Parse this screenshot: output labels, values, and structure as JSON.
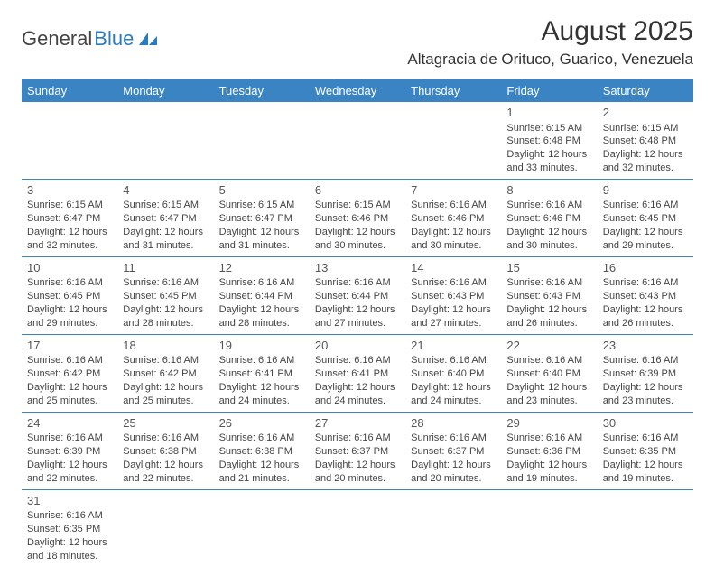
{
  "logo": {
    "part1": "General",
    "part2": "Blue"
  },
  "title": "August 2025",
  "location": "Altagracia de Orituco, Guarico, Venezuela",
  "colors": {
    "header_bg": "#3a84c4",
    "header_fg": "#ffffff",
    "border": "#3a84c4",
    "logo_blue": "#2a7bbf",
    "text": "#444444"
  },
  "day_headers": [
    "Sunday",
    "Monday",
    "Tuesday",
    "Wednesday",
    "Thursday",
    "Friday",
    "Saturday"
  ],
  "weeks": [
    [
      null,
      null,
      null,
      null,
      null,
      {
        "n": "1",
        "sr": "Sunrise: 6:15 AM",
        "ss": "Sunset: 6:48 PM",
        "d1": "Daylight: 12 hours",
        "d2": "and 33 minutes."
      },
      {
        "n": "2",
        "sr": "Sunrise: 6:15 AM",
        "ss": "Sunset: 6:48 PM",
        "d1": "Daylight: 12 hours",
        "d2": "and 32 minutes."
      }
    ],
    [
      {
        "n": "3",
        "sr": "Sunrise: 6:15 AM",
        "ss": "Sunset: 6:47 PM",
        "d1": "Daylight: 12 hours",
        "d2": "and 32 minutes."
      },
      {
        "n": "4",
        "sr": "Sunrise: 6:15 AM",
        "ss": "Sunset: 6:47 PM",
        "d1": "Daylight: 12 hours",
        "d2": "and 31 minutes."
      },
      {
        "n": "5",
        "sr": "Sunrise: 6:15 AM",
        "ss": "Sunset: 6:47 PM",
        "d1": "Daylight: 12 hours",
        "d2": "and 31 minutes."
      },
      {
        "n": "6",
        "sr": "Sunrise: 6:15 AM",
        "ss": "Sunset: 6:46 PM",
        "d1": "Daylight: 12 hours",
        "d2": "and 30 minutes."
      },
      {
        "n": "7",
        "sr": "Sunrise: 6:16 AM",
        "ss": "Sunset: 6:46 PM",
        "d1": "Daylight: 12 hours",
        "d2": "and 30 minutes."
      },
      {
        "n": "8",
        "sr": "Sunrise: 6:16 AM",
        "ss": "Sunset: 6:46 PM",
        "d1": "Daylight: 12 hours",
        "d2": "and 30 minutes."
      },
      {
        "n": "9",
        "sr": "Sunrise: 6:16 AM",
        "ss": "Sunset: 6:45 PM",
        "d1": "Daylight: 12 hours",
        "d2": "and 29 minutes."
      }
    ],
    [
      {
        "n": "10",
        "sr": "Sunrise: 6:16 AM",
        "ss": "Sunset: 6:45 PM",
        "d1": "Daylight: 12 hours",
        "d2": "and 29 minutes."
      },
      {
        "n": "11",
        "sr": "Sunrise: 6:16 AM",
        "ss": "Sunset: 6:45 PM",
        "d1": "Daylight: 12 hours",
        "d2": "and 28 minutes."
      },
      {
        "n": "12",
        "sr": "Sunrise: 6:16 AM",
        "ss": "Sunset: 6:44 PM",
        "d1": "Daylight: 12 hours",
        "d2": "and 28 minutes."
      },
      {
        "n": "13",
        "sr": "Sunrise: 6:16 AM",
        "ss": "Sunset: 6:44 PM",
        "d1": "Daylight: 12 hours",
        "d2": "and 27 minutes."
      },
      {
        "n": "14",
        "sr": "Sunrise: 6:16 AM",
        "ss": "Sunset: 6:43 PM",
        "d1": "Daylight: 12 hours",
        "d2": "and 27 minutes."
      },
      {
        "n": "15",
        "sr": "Sunrise: 6:16 AM",
        "ss": "Sunset: 6:43 PM",
        "d1": "Daylight: 12 hours",
        "d2": "and 26 minutes."
      },
      {
        "n": "16",
        "sr": "Sunrise: 6:16 AM",
        "ss": "Sunset: 6:43 PM",
        "d1": "Daylight: 12 hours",
        "d2": "and 26 minutes."
      }
    ],
    [
      {
        "n": "17",
        "sr": "Sunrise: 6:16 AM",
        "ss": "Sunset: 6:42 PM",
        "d1": "Daylight: 12 hours",
        "d2": "and 25 minutes."
      },
      {
        "n": "18",
        "sr": "Sunrise: 6:16 AM",
        "ss": "Sunset: 6:42 PM",
        "d1": "Daylight: 12 hours",
        "d2": "and 25 minutes."
      },
      {
        "n": "19",
        "sr": "Sunrise: 6:16 AM",
        "ss": "Sunset: 6:41 PM",
        "d1": "Daylight: 12 hours",
        "d2": "and 24 minutes."
      },
      {
        "n": "20",
        "sr": "Sunrise: 6:16 AM",
        "ss": "Sunset: 6:41 PM",
        "d1": "Daylight: 12 hours",
        "d2": "and 24 minutes."
      },
      {
        "n": "21",
        "sr": "Sunrise: 6:16 AM",
        "ss": "Sunset: 6:40 PM",
        "d1": "Daylight: 12 hours",
        "d2": "and 24 minutes."
      },
      {
        "n": "22",
        "sr": "Sunrise: 6:16 AM",
        "ss": "Sunset: 6:40 PM",
        "d1": "Daylight: 12 hours",
        "d2": "and 23 minutes."
      },
      {
        "n": "23",
        "sr": "Sunrise: 6:16 AM",
        "ss": "Sunset: 6:39 PM",
        "d1": "Daylight: 12 hours",
        "d2": "and 23 minutes."
      }
    ],
    [
      {
        "n": "24",
        "sr": "Sunrise: 6:16 AM",
        "ss": "Sunset: 6:39 PM",
        "d1": "Daylight: 12 hours",
        "d2": "and 22 minutes."
      },
      {
        "n": "25",
        "sr": "Sunrise: 6:16 AM",
        "ss": "Sunset: 6:38 PM",
        "d1": "Daylight: 12 hours",
        "d2": "and 22 minutes."
      },
      {
        "n": "26",
        "sr": "Sunrise: 6:16 AM",
        "ss": "Sunset: 6:38 PM",
        "d1": "Daylight: 12 hours",
        "d2": "and 21 minutes."
      },
      {
        "n": "27",
        "sr": "Sunrise: 6:16 AM",
        "ss": "Sunset: 6:37 PM",
        "d1": "Daylight: 12 hours",
        "d2": "and 20 minutes."
      },
      {
        "n": "28",
        "sr": "Sunrise: 6:16 AM",
        "ss": "Sunset: 6:37 PM",
        "d1": "Daylight: 12 hours",
        "d2": "and 20 minutes."
      },
      {
        "n": "29",
        "sr": "Sunrise: 6:16 AM",
        "ss": "Sunset: 6:36 PM",
        "d1": "Daylight: 12 hours",
        "d2": "and 19 minutes."
      },
      {
        "n": "30",
        "sr": "Sunrise: 6:16 AM",
        "ss": "Sunset: 6:35 PM",
        "d1": "Daylight: 12 hours",
        "d2": "and 19 minutes."
      }
    ],
    [
      {
        "n": "31",
        "sr": "Sunrise: 6:16 AM",
        "ss": "Sunset: 6:35 PM",
        "d1": "Daylight: 12 hours",
        "d2": "and 18 minutes."
      },
      null,
      null,
      null,
      null,
      null,
      null
    ]
  ]
}
